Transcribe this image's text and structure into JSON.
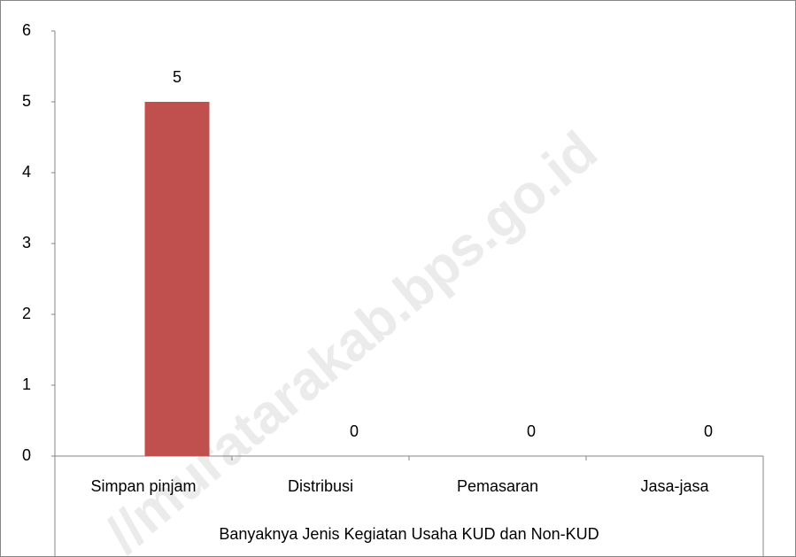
{
  "chart_data": {
    "type": "bar",
    "categories": [
      "Simpan pinjam",
      "Distribusi",
      "Pemasaran",
      "Jasa-jasa"
    ],
    "values": [
      5,
      0,
      0,
      0
    ],
    "color": "#c0504d",
    "ylim": [
      0,
      6
    ],
    "yticks": [
      0,
      1,
      2,
      3,
      4,
      5,
      6
    ],
    "xlabel": "Banyaknya Jenis Kegiatan Usaha KUD dan Non-KUD",
    "grid": false,
    "watermark": "//muratarakab.bps.go.id"
  }
}
